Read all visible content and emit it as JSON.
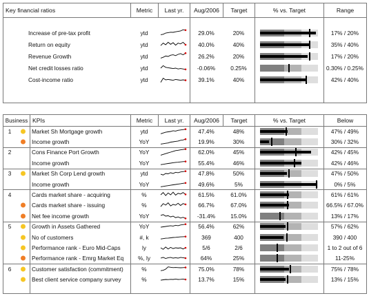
{
  "colors": {
    "orange": "#f07e26",
    "yellow": "#f6c624",
    "bullet_dark": "#808080",
    "bullet_mid": "#b3b3b3",
    "bullet_light": "#dedede"
  },
  "top": {
    "headers": {
      "section": "Key financial ratios",
      "metric": "Metric",
      "last_yr": "Last yr.",
      "aug": "Aug/2006",
      "target": "Target",
      "pct": "% vs. Target",
      "range": "Range"
    },
    "rows": [
      {
        "label": "Increase of pre-tax profit",
        "metric": "ytd",
        "aug": "29.0%",
        "target": "20%",
        "range": "17% / 20%",
        "bar": 0.97,
        "tgt": 0.86,
        "spark": [
          0.3,
          0.35,
          0.5,
          0.55,
          0.6,
          0.58,
          0.65,
          0.7,
          0.75,
          0.9,
          0.85
        ]
      },
      {
        "label": "Return on equity",
        "metric": "ytd",
        "aug": "40.0%",
        "target": "40%",
        "range": "35% / 40%",
        "bar": 0.86,
        "tgt": 0.86,
        "spark": [
          0.4,
          0.7,
          0.5,
          0.8,
          0.55,
          0.75,
          0.45,
          0.7,
          0.6,
          0.8,
          0.5
        ]
      },
      {
        "label": "Revenue Growth",
        "metric": "ytd",
        "aug": "26.2%",
        "target": "20%",
        "range": "17% / 20%",
        "bar": 0.82,
        "tgt": 0.86,
        "spark": [
          0.3,
          0.4,
          0.55,
          0.5,
          0.65,
          0.7,
          0.6,
          0.75,
          0.85,
          0.7,
          0.9
        ]
      },
      {
        "label": "Net credit losses ratio",
        "metric": "ytd",
        "aug": "-0.06%",
        "target": "0.25%",
        "range": "0.30% / 0.25%",
        "bar": 0.0,
        "tgt": 0.5,
        "spark": [
          0.5,
          0.8,
          0.6,
          0.55,
          0.5,
          0.45,
          0.5,
          0.4,
          0.45,
          0.4,
          0.35
        ]
      },
      {
        "label": "Cost-income ratio",
        "metric": "ytd",
        "aug": "39.1%",
        "target": "40%",
        "range": "42% / 40%",
        "bar": 0.78,
        "tgt": 0.8,
        "spark": [
          0.2,
          0.7,
          0.5,
          0.55,
          0.5,
          0.45,
          0.55,
          0.5,
          0.45,
          0.5,
          0.45
        ]
      }
    ]
  },
  "bottom": {
    "headers": {
      "business": "Business",
      "kpis": "KPIs",
      "metric": "Metric",
      "last_yr": "Last yr.",
      "aug": "Aug/2006",
      "target": "Target",
      "pct": "% vs. Target",
      "below": "Below"
    },
    "rows": [
      {
        "group": "1",
        "dot": "yellow",
        "label": "Market Sh Mortgage growth",
        "metric": "ytd",
        "aug": "47.4%",
        "target": "48%",
        "below": "47% / 49%",
        "bar": 0.48,
        "tgt": 0.45,
        "spark": [
          0.2,
          0.3,
          0.4,
          0.45,
          0.5,
          0.6,
          0.55,
          0.65,
          0.7,
          0.75,
          0.8
        ]
      },
      {
        "group": "",
        "dot": "orange",
        "label": "Income growth",
        "metric": "YoY",
        "aug": "19.9%",
        "target": "30%",
        "below": "30% / 32%",
        "bar": 0.16,
        "tgt": 0.2,
        "spark": [
          0.2,
          0.25,
          0.3,
          0.35,
          0.45,
          0.5,
          0.55,
          0.6,
          0.7,
          0.75,
          0.85
        ]
      },
      {
        "group": "2",
        "dot": "",
        "label": "Cons Finance Port Growth",
        "metric": "YoY",
        "aug": "62.0%",
        "target": "45%",
        "below": "42% / 45%",
        "bar": 0.88,
        "tgt": 0.62,
        "spark": [
          0.1,
          0.2,
          0.3,
          0.4,
          0.5,
          0.6,
          0.7,
          0.75,
          0.8,
          0.85,
          0.9
        ]
      },
      {
        "group": "",
        "dot": "",
        "label": "Income growth",
        "metric": "YoY",
        "aug": "55.4%",
        "target": "46%",
        "below": "42% / 46%",
        "bar": 0.72,
        "tgt": 0.6,
        "spark": [
          0.3,
          0.35,
          0.4,
          0.45,
          0.5,
          0.55,
          0.6,
          0.62,
          0.66,
          0.7,
          0.72
        ]
      },
      {
        "group": "3",
        "dot": "yellow",
        "label": "Market Sh Corp Lend growth",
        "metric": "ytd",
        "aug": "47.8%",
        "target": "50%",
        "below": "47% / 50%",
        "bar": 0.46,
        "tgt": 0.5,
        "spark": [
          0.4,
          0.3,
          0.5,
          0.45,
          0.6,
          0.5,
          0.65,
          0.6,
          0.7,
          0.75,
          0.8
        ]
      },
      {
        "group": "",
        "dot": "",
        "label": "Income growth",
        "metric": "YoY",
        "aug": "49.6%",
        "target": "5%",
        "below": "0% / 5%",
        "bar": 0.99,
        "tgt": 0.98,
        "spark": [
          0.2,
          0.25,
          0.3,
          0.35,
          0.4,
          0.45,
          0.5,
          0.55,
          0.6,
          0.65,
          0.7
        ]
      },
      {
        "group": "4",
        "dot": "",
        "label": "Cards market share - acquiring",
        "metric": "%",
        "aug": "61.5%",
        "target": "61.0%",
        "below": "61% / 61%",
        "bar": 0.5,
        "tgt": 0.48,
        "spark": [
          0.5,
          0.8,
          0.4,
          0.75,
          0.5,
          0.85,
          0.45,
          0.7,
          0.6,
          0.8,
          0.55
        ]
      },
      {
        "group": "",
        "dot": "orange",
        "label": "Cards market share - issuing",
        "metric": "%",
        "aug": "66.7%",
        "target": "67.0%",
        "below": "66.5% / 67.0%",
        "bar": 0.5,
        "tgt": 0.48,
        "spark": [
          0.3,
          0.7,
          0.5,
          0.8,
          0.4,
          0.6,
          0.5,
          0.75,
          0.45,
          0.7,
          0.6
        ]
      },
      {
        "group": "",
        "dot": "orange",
        "label": "Net fee income growth",
        "metric": "YoY",
        "aug": "-31.4%",
        "target": "15.0%",
        "below": "13% / 17%",
        "bar": 0.0,
        "tgt": 0.35,
        "spark": [
          0.6,
          0.7,
          0.5,
          0.55,
          0.4,
          0.5,
          0.3,
          0.4,
          0.25,
          0.35,
          0.2
        ]
      },
      {
        "group": "5",
        "dot": "yellow",
        "label": "Growth in Assets Gathered",
        "metric": "YoY",
        "aug": "56.4%",
        "target": "62%",
        "below": "57% / 62%",
        "bar": 0.44,
        "tgt": 0.48,
        "spark": [
          0.4,
          0.45,
          0.5,
          0.55,
          0.6,
          0.55,
          0.65,
          0.6,
          0.7,
          0.75,
          0.8
        ]
      },
      {
        "group": "",
        "dot": "yellow",
        "label": "No of customers",
        "metric": "#, k",
        "aug": "369",
        "target": "400",
        "below": "390 / 400",
        "bar": 0.4,
        "tgt": 0.46,
        "spark": [
          0.3,
          0.35,
          0.4,
          0.42,
          0.45,
          0.5,
          0.52,
          0.55,
          0.58,
          0.6,
          0.62
        ]
      },
      {
        "group": "",
        "dot": "yellow",
        "label": "Performance rank - Euro Mid-Caps",
        "metric": "ly",
        "aug": "5/6",
        "target": "2/6",
        "below": "1 to 2 out of 6",
        "bar": 0.0,
        "tgt": 0.3,
        "spark": [
          0.5,
          0.3,
          0.6,
          0.35,
          0.55,
          0.4,
          0.5,
          0.45,
          0.5,
          0.35,
          0.5
        ]
      },
      {
        "group": "",
        "dot": "orange",
        "label": "Performance rank - Emrg Market Eq",
        "metric": "%, ly",
        "aug": "64%",
        "target": "25%",
        "below": "11-25%",
        "bar": 0.0,
        "tgt": 0.3,
        "spark": [
          0.5,
          0.6,
          0.45,
          0.55,
          0.6,
          0.5,
          0.55,
          0.5,
          0.6,
          0.55,
          0.5
        ]
      },
      {
        "group": "6",
        "dot": "yellow",
        "label": "Customer satisfaction (commitment)",
        "metric": "%",
        "aug": "75.0%",
        "target": "78%",
        "below": "75% / 78%",
        "bar": 0.5,
        "tgt": 0.52,
        "spark": [
          0.3,
          0.35,
          0.5,
          0.8,
          0.75,
          0.7,
          0.72,
          0.7,
          0.68,
          0.7,
          0.72
        ]
      },
      {
        "group": "",
        "dot": "yellow",
        "label": "Best client service company survey",
        "metric": "%",
        "aug": "13.7%",
        "target": "15%",
        "below": "13% / 15%",
        "bar": 0.44,
        "tgt": 0.48,
        "spark": [
          0.4,
          0.45,
          0.5,
          0.48,
          0.52,
          0.5,
          0.55,
          0.5,
          0.52,
          0.55,
          0.5
        ]
      }
    ]
  }
}
